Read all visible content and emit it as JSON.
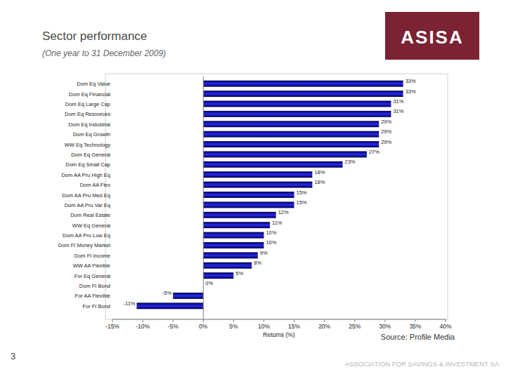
{
  "chart_data": {
    "type": "bar",
    "orientation": "horizontal",
    "title": "Sector performance",
    "subtitle": "(One year to 31 December 2009)",
    "x_label": "Returns (%)",
    "categories": [
      "Dom Eq Value",
      "Dom Eq Financial",
      "Dom Eq Large Cap",
      "Dom Eq Resources",
      "Dom Eq Industrial",
      "Dom Eq Growth",
      "WW Eq Technology",
      "Dom Eq General",
      "Dom Eq Small Cap",
      "Dom AA Pru High Eq",
      "Dom AA Flex",
      "Dom AA Pru Med Eq",
      "Dom AA Pru Var Eq",
      "Dom Real Estate",
      "WW Eq General",
      "Dom AA Pru Low Eq",
      "Dom FI Money Market",
      "Dom FI Income",
      "WW AA Flexible",
      "For Eq General",
      "Dom FI Bond",
      "For AA Flexible",
      "For FI Bond"
    ],
    "values": [
      33,
      33,
      31,
      31,
      29,
      29,
      29,
      27,
      23,
      18,
      18,
      15,
      15,
      12,
      11,
      10,
      10,
      9,
      8,
      5,
      0,
      -5,
      -11
    ],
    "value_labels": [
      "33%",
      "33%",
      "31%",
      "31%",
      "29%",
      "29%",
      "29%",
      "27%",
      "23%",
      "18%",
      "18%",
      "15%",
      "15%",
      "12%",
      "11%",
      "10%",
      "10%",
      "9%",
      "8%",
      "5%",
      "0%",
      "-5%",
      "-11%"
    ],
    "color": "#2828f0",
    "data_labels": true,
    "grid": false,
    "xlim": [
      -15,
      40
    ],
    "xticks": [
      {
        "value": -15,
        "label": "-15%"
      },
      {
        "value": -10,
        "label": "-10%"
      },
      {
        "value": -5,
        "label": "-5%"
      },
      {
        "value": 0,
        "label": "0%"
      },
      {
        "value": 5,
        "label": "5%"
      },
      {
        "value": 10,
        "label": "10%"
      },
      {
        "value": 15,
        "label": "15%"
      },
      {
        "value": 20,
        "label": "20%"
      },
      {
        "value": 25,
        "label": "25%"
      },
      {
        "value": 30,
        "label": "30%"
      },
      {
        "value": 35,
        "label": "35%"
      },
      {
        "value": 40,
        "label": "40%"
      }
    ]
  },
  "page": {
    "logo": "ASISA",
    "source": "Source:  Profile Media",
    "page_number": "3",
    "footer": "ASSOCIATION FOR SAVINGS & INVESTMENT SA"
  }
}
